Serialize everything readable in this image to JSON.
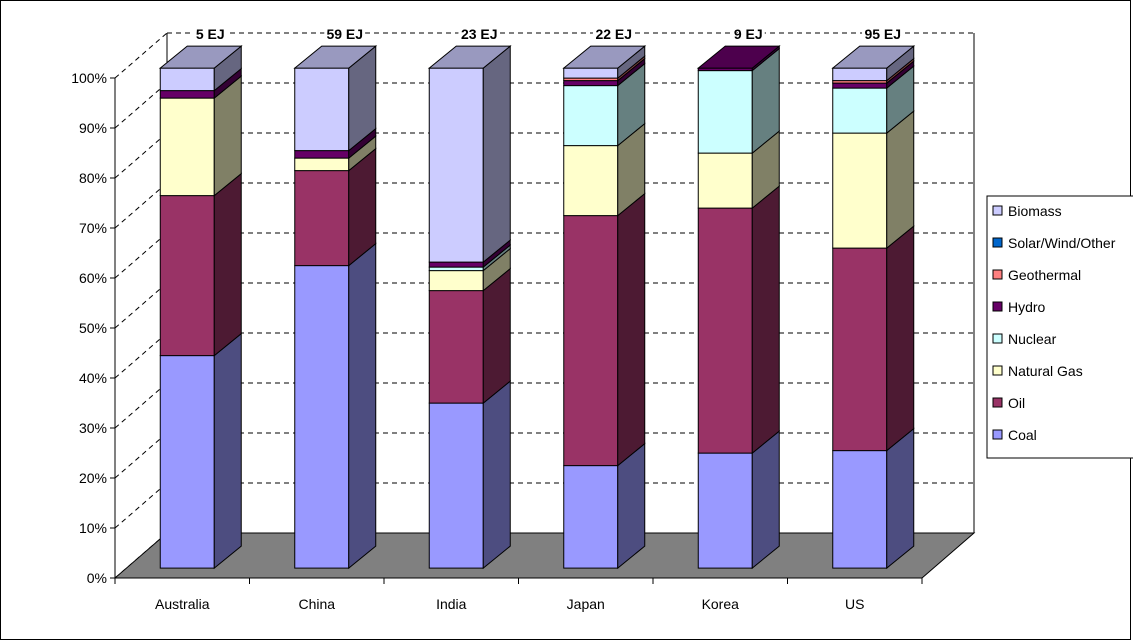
{
  "chart_data": {
    "type": "bar",
    "stacked": "percent",
    "view": "3d",
    "categories": [
      "Australia",
      "China",
      "India",
      "Japan",
      "Korea",
      "US"
    ],
    "totals": [
      "5 EJ",
      "59 EJ",
      "23 EJ",
      "22 EJ",
      "9 EJ",
      "95 EJ"
    ],
    "series": [
      {
        "name": "Coal",
        "color": "#9999ff",
        "values": [
          42.5,
          60.5,
          33.0,
          20.5,
          23.0,
          23.5
        ]
      },
      {
        "name": "Oil",
        "color": "#993366",
        "values": [
          32.0,
          19.0,
          22.5,
          50.0,
          49.0,
          40.5
        ]
      },
      {
        "name": "Natural Gas",
        "color": "#ffffcc",
        "values": [
          19.5,
          2.5,
          4.0,
          14.0,
          11.0,
          23.0
        ]
      },
      {
        "name": "Nuclear",
        "color": "#ccffff",
        "values": [
          0,
          0,
          0.7,
          12.0,
          16.5,
          9.0
        ]
      },
      {
        "name": "Hydro",
        "color": "#660066",
        "values": [
          1.5,
          1.5,
          1.0,
          1.0,
          0.5,
          1.0
        ]
      },
      {
        "name": "Geothermal",
        "color": "#ff8080",
        "values": [
          0,
          0,
          0,
          0.5,
          0,
          0.5
        ]
      },
      {
        "name": "Solar/Wind/Other",
        "color": "#0066cc",
        "values": [
          0,
          0,
          0,
          0,
          0,
          0
        ]
      },
      {
        "name": "Biomass",
        "color": "#ccccff",
        "values": [
          4.5,
          16.5,
          38.8,
          2.0,
          0,
          2.5
        ]
      }
    ],
    "ylim": [
      0,
      100
    ],
    "y_ticks": [
      "0%",
      "10%",
      "20%",
      "30%",
      "40%",
      "50%",
      "60%",
      "70%",
      "80%",
      "90%",
      "100%"
    ],
    "grid": true,
    "legend_position": "right",
    "legend_order": [
      "Biomass",
      "Solar/Wind/Other",
      "Geothermal",
      "Hydro",
      "Nuclear",
      "Natural Gas",
      "Oil",
      "Coal"
    ],
    "floor_color": "#808080",
    "title": "",
    "xlabel": "",
    "ylabel": ""
  }
}
